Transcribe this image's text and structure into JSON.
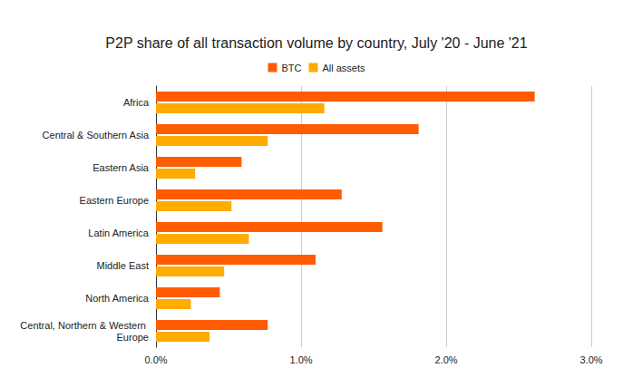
{
  "chart_data": {
    "type": "bar",
    "title": "P2P share of all transaction volume by country, July '20 - June '21",
    "orientation": "horizontal",
    "categories": [
      "Africa",
      "Central & Southern Asia",
      "Eastern Asia",
      "Eastern Europe",
      "Latin America",
      "Middle East",
      "North America",
      "Central, Northern & Western Europe"
    ],
    "series": [
      {
        "name": "BTC",
        "color": "#ff5b00",
        "values": [
          2.61,
          1.81,
          0.59,
          1.28,
          1.56,
          1.1,
          0.44,
          0.77
        ]
      },
      {
        "name": "All assets",
        "color": "#ffab00",
        "values": [
          1.16,
          0.77,
          0.27,
          0.52,
          0.64,
          0.47,
          0.24,
          0.37
        ]
      }
    ],
    "xlim": [
      0,
      3
    ],
    "xticks": [
      {
        "value": 0,
        "label": "0.0%"
      },
      {
        "value": 1,
        "label": "1.0%"
      },
      {
        "value": 2,
        "label": "2.0%"
      },
      {
        "value": 3,
        "label": "3.0%"
      }
    ],
    "grid": true,
    "legend": "top"
  }
}
